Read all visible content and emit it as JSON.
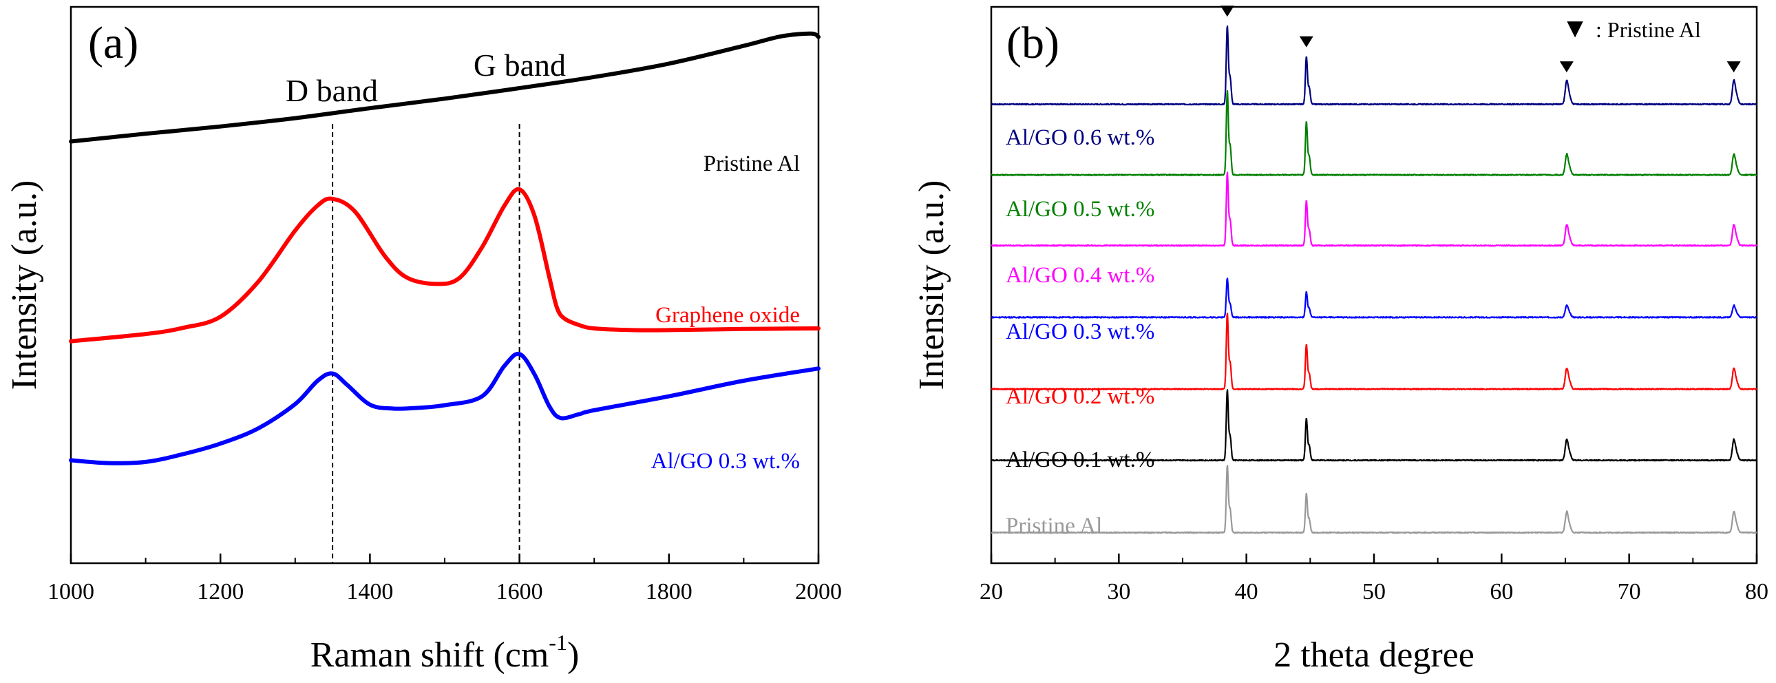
{
  "chart_data": [
    {
      "id": "a",
      "type": "line",
      "panel_label": "(a)",
      "title": "",
      "xlabel_main": "Raman shift (cm",
      "xlabel_sup": "-1",
      "xlabel_close": ")",
      "ylabel": "Intensity (a.u.)",
      "xlim": [
        1000,
        2000
      ],
      "xticks": [
        1000,
        1200,
        1400,
        1600,
        1800,
        2000
      ],
      "ylim": [
        0,
        100
      ],
      "yticks_shown": false,
      "grid": false,
      "reference_lines": [
        {
          "x": 1350,
          "label": "D band"
        },
        {
          "x": 1600,
          "label": "G band"
        }
      ],
      "series": [
        {
          "name": "Pristine Al",
          "color": "#000000",
          "x": [
            1000,
            1100,
            1200,
            1300,
            1400,
            1500,
            1600,
            1700,
            1800,
            1900,
            1950,
            1990,
            2000
          ],
          "y": [
            75.8,
            77.2,
            78.5,
            80.0,
            81.8,
            83.5,
            85.4,
            87.4,
            89.8,
            93.0,
            94.7,
            95.2,
            94.6
          ]
        },
        {
          "name": "Graphene oxide",
          "color": "#ff0000",
          "x": [
            1000,
            1100,
            1150,
            1200,
            1250,
            1300,
            1330,
            1350,
            1380,
            1420,
            1450,
            1490,
            1520,
            1550,
            1580,
            1600,
            1620,
            1640,
            1650,
            1660,
            1680,
            1700,
            1750,
            1800,
            1900,
            2000
          ],
          "y": [
            39.9,
            41.2,
            42.3,
            44.3,
            50.5,
            59.8,
            64.3,
            65.5,
            63.2,
            55.2,
            51.3,
            50.2,
            51.3,
            56.8,
            64.3,
            67.2,
            62.5,
            51.4,
            46.0,
            44.0,
            42.8,
            42.2,
            41.9,
            41.9,
            42.1,
            42.2
          ]
        },
        {
          "name": "Al/GO 0.3 wt.%",
          "color": "#0000ff",
          "x": [
            1000,
            1050,
            1100,
            1150,
            1200,
            1250,
            1300,
            1330,
            1350,
            1370,
            1400,
            1430,
            1460,
            1500,
            1550,
            1580,
            1600,
            1620,
            1640,
            1655,
            1680,
            1700,
            1800,
            1900,
            2000
          ],
          "y": [
            18.5,
            18.0,
            18.2,
            19.6,
            21.5,
            24.2,
            28.6,
            32.8,
            34.1,
            32.0,
            28.5,
            27.8,
            27.9,
            28.4,
            30.0,
            35.5,
            37.6,
            34.0,
            28.2,
            26.1,
            26.8,
            27.5,
            30.0,
            32.8,
            35.0
          ]
        }
      ]
    },
    {
      "id": "b",
      "type": "line",
      "panel_label": "(b)",
      "title": "",
      "xlabel": "2 theta degree",
      "ylabel": "Intensity (a.u.)",
      "xlim": [
        20,
        80
      ],
      "xticks": [
        20,
        30,
        40,
        50,
        60,
        70,
        80
      ],
      "ylim": [
        0,
        100
      ],
      "yticks_shown": false,
      "grid": false,
      "legend_text": ": Pristine Al",
      "legend_marker": "▼",
      "legend_position": "top-right",
      "peak_markers_x": [
        38.5,
        44.7,
        65.1,
        78.2
      ],
      "peak_positions": [
        38.5,
        44.7,
        65.1,
        78.2
      ],
      "series": [
        {
          "name": "Al/GO 0.6 wt.%",
          "color": "#000080",
          "baseline": 82.5,
          "peak_heights": [
            14.0,
            8.5,
            4.0,
            4.0
          ]
        },
        {
          "name": "Al/GO 0.5 wt.%",
          "color": "#008000",
          "baseline": 69.8,
          "peak_heights": [
            15.0,
            9.5,
            3.5,
            3.5
          ]
        },
        {
          "name": "Al/GO 0.4 wt.%",
          "color": "#ff00ff",
          "baseline": 57.1,
          "peak_heights": [
            13.0,
            8.0,
            3.5,
            3.5
          ]
        },
        {
          "name": "Al/GO 0.3 wt.%",
          "color": "#0000ff",
          "baseline": 44.2,
          "peak_heights": [
            7.0,
            4.5,
            2.0,
            2.0
          ]
        },
        {
          "name": "Al/GO 0.2 wt.%",
          "color": "#ff0000",
          "baseline": 31.3,
          "peak_heights": [
            13.5,
            8.0,
            3.5,
            3.5
          ]
        },
        {
          "name": "Al/GO 0.1 wt.%",
          "color": "#000000",
          "baseline": 18.5,
          "peak_heights": [
            12.5,
            7.5,
            3.5,
            3.5
          ]
        },
        {
          "name": "Pristine Al",
          "color": "#999999",
          "baseline": 5.5,
          "peak_heights": [
            12.0,
            7.0,
            3.5,
            3.5
          ]
        }
      ]
    }
  ]
}
